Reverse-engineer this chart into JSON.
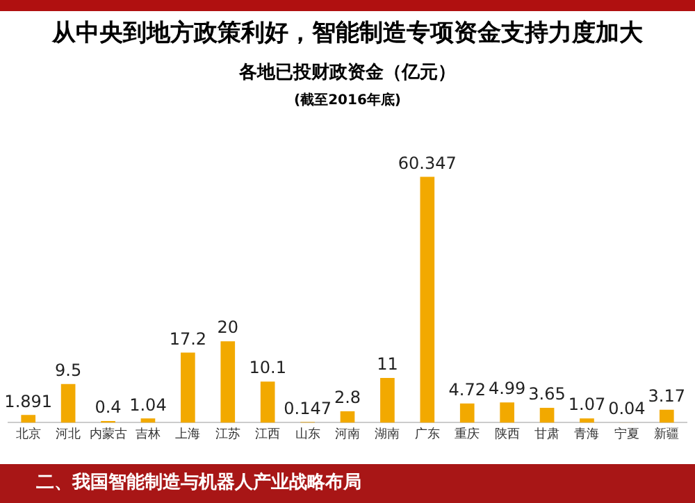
{
  "chart_data": {
    "type": "bar",
    "title": "从中央到地方政策利好，智能制造专项资金支持力度加大",
    "subtitle": "各地已投财政资金（亿元）",
    "annotations": [
      "(截至2016年底)",
      "二、我国智能制造与机器人产业战略布局"
    ],
    "categories": [
      "北京",
      "河北",
      "内蒙古",
      "吉林",
      "上海",
      "江苏",
      "江西",
      "山东",
      "河南",
      "湖南",
      "广东",
      "重庆",
      "陕西",
      "甘肃",
      "青海",
      "宁夏",
      "新疆"
    ],
    "values": [
      1.891,
      9.5,
      0.4,
      1.04,
      17.2,
      20,
      10.1,
      0.147,
      2.8,
      11,
      60.347,
      4.72,
      4.99,
      3.65,
      1.07,
      0.04,
      3.17
    ],
    "value_labels": [
      "1.891",
      "9.5",
      "0.4",
      "1.04",
      "17.2",
      "20",
      "10.1",
      "0.147",
      "2.8",
      "11",
      "60.347",
      "4.72",
      "4.99",
      "3.65",
      "1.07",
      "0.04",
      "3.17"
    ],
    "color": "#f2a900"
  }
}
